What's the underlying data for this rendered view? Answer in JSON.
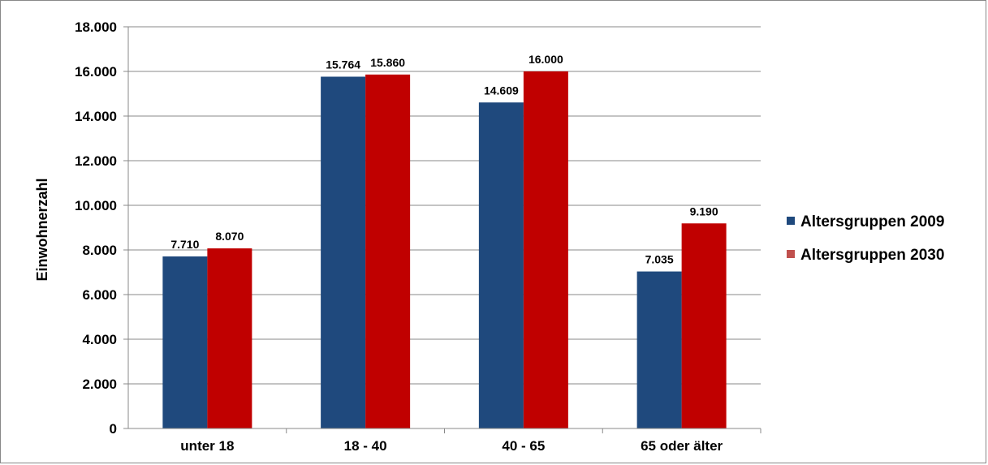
{
  "chart_data": {
    "type": "bar",
    "title": "",
    "xlabel": "",
    "ylabel": "Einwohnerzahl",
    "ylim": [
      0,
      18000
    ],
    "yticks": [
      "0",
      "2.000",
      "4.000",
      "6.000",
      "8.000",
      "10.000",
      "12.000",
      "14.000",
      "16.000",
      "18.000"
    ],
    "categories": [
      "unter 18",
      "18 - 40",
      "40 - 65",
      "65 oder älter"
    ],
    "series": [
      {
        "name": "Altersgruppen 2009",
        "color": "#1F497D",
        "values": [
          7710,
          15764,
          14609,
          7035
        ],
        "labels": [
          "7.710",
          "15.764",
          "14.609",
          "7.035"
        ]
      },
      {
        "name": "Altersgruppen 2030",
        "color": "#C00000",
        "values": [
          8070,
          15860,
          16000,
          9190
        ],
        "labels": [
          "8.070",
          "15.860",
          "16.000",
          "9.190"
        ]
      }
    ],
    "legend": {
      "position": "right",
      "marker_colors": [
        "#1F497D",
        "#C0504D"
      ]
    },
    "grid": true
  }
}
